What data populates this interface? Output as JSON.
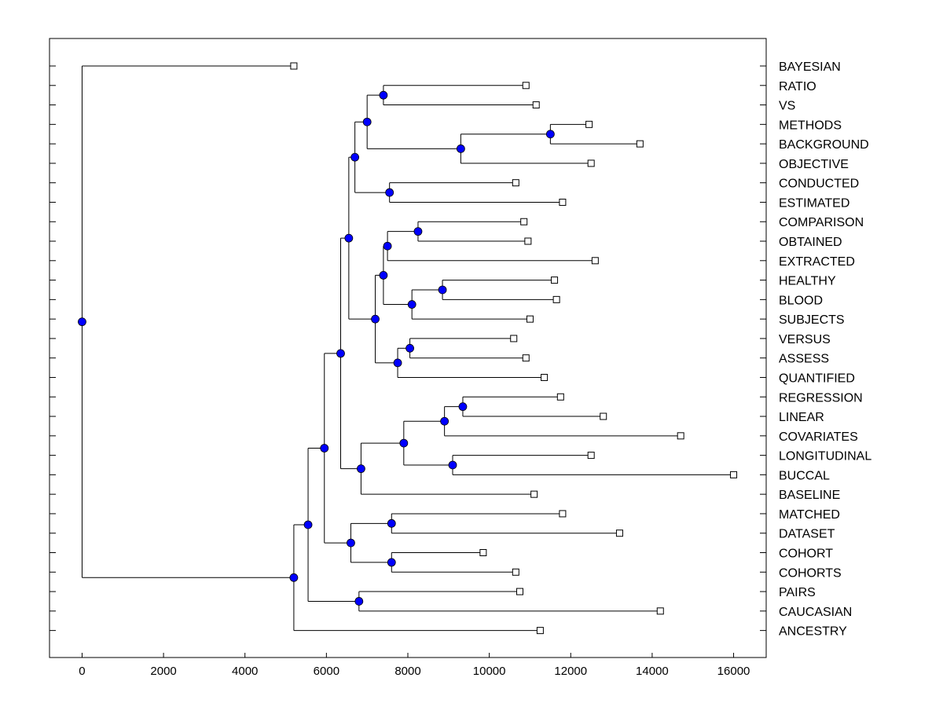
{
  "chart_data": {
    "type": "dendrogram",
    "title": "",
    "xlabel": "",
    "ylabel": "",
    "xlim": [
      -800,
      16800
    ],
    "x_ticks": [
      0,
      2000,
      4000,
      6000,
      8000,
      10000,
      12000,
      14000,
      16000
    ],
    "x_tick_labels": [
      "0",
      "2000",
      "4000",
      "6000",
      "8000",
      "10000",
      "12000",
      "14000",
      "16000"
    ],
    "colors": {
      "node_fill": "#0000ff",
      "leaf_fill": "#ffffff",
      "line": "#000000"
    },
    "leaves": [
      {
        "label": "BAYESIAN",
        "x": 5200
      },
      {
        "label": "RATIO",
        "x": 10900
      },
      {
        "label": "VS",
        "x": 11150
      },
      {
        "label": "METHODS",
        "x": 12450
      },
      {
        "label": "BACKGROUND",
        "x": 13700
      },
      {
        "label": "OBJECTIVE",
        "x": 12500
      },
      {
        "label": "CONDUCTED",
        "x": 10650
      },
      {
        "label": "ESTIMATED",
        "x": 11800
      },
      {
        "label": "COMPARISON",
        "x": 10850
      },
      {
        "label": "OBTAINED",
        "x": 10950
      },
      {
        "label": "EXTRACTED",
        "x": 12600
      },
      {
        "label": "HEALTHY",
        "x": 11600
      },
      {
        "label": "BLOOD",
        "x": 11650
      },
      {
        "label": "SUBJECTS",
        "x": 11000
      },
      {
        "label": "VERSUS",
        "x": 10600
      },
      {
        "label": "ASSESS",
        "x": 10900
      },
      {
        "label": "QUANTIFIED",
        "x": 11350
      },
      {
        "label": "REGRESSION",
        "x": 11750
      },
      {
        "label": "LINEAR",
        "x": 12800
      },
      {
        "label": "COVARIATES",
        "x": 14700
      },
      {
        "label": "LONGITUDINAL",
        "x": 12500
      },
      {
        "label": "BUCCAL",
        "x": 16000
      },
      {
        "label": "BASELINE",
        "x": 11100
      },
      {
        "label": "MATCHED",
        "x": 11800
      },
      {
        "label": "DATASET",
        "x": 13200
      },
      {
        "label": "COHORT",
        "x": 9850
      },
      {
        "label": "COHORTS",
        "x": 10650
      },
      {
        "label": "PAIRS",
        "x": 10750
      },
      {
        "label": "CAUCASIAN",
        "x": 14200
      },
      {
        "label": "ANCESTRY",
        "x": 11250
      }
    ],
    "nodes": [
      {
        "id": "n0",
        "x": 7400,
        "children": [
          "L1",
          "L2"
        ]
      },
      {
        "id": "n1",
        "x": 11500,
        "children": [
          "L3",
          "L4"
        ]
      },
      {
        "id": "n2",
        "x": 9300,
        "children": [
          "n1",
          "L5"
        ]
      },
      {
        "id": "n3",
        "x": 7000,
        "children": [
          "n0",
          "n2"
        ]
      },
      {
        "id": "n4",
        "x": 7550,
        "children": [
          "L6",
          "L7"
        ]
      },
      {
        "id": "n5",
        "x": 6700,
        "children": [
          "n3",
          "n4"
        ]
      },
      {
        "id": "n6",
        "x": 8250,
        "children": [
          "L8",
          "L9"
        ]
      },
      {
        "id": "n7",
        "x": 7500,
        "children": [
          "n6",
          "L10"
        ]
      },
      {
        "id": "n8",
        "x": 8850,
        "children": [
          "L11",
          "L12"
        ]
      },
      {
        "id": "n9",
        "x": 8100,
        "children": [
          "n8",
          "L13"
        ]
      },
      {
        "id": "n10",
        "x": 7400,
        "children": [
          "n7",
          "n9"
        ]
      },
      {
        "id": "n11",
        "x": 8050,
        "children": [
          "L14",
          "L15"
        ]
      },
      {
        "id": "n12",
        "x": 7750,
        "children": [
          "n11",
          "L16"
        ]
      },
      {
        "id": "n13",
        "x": 7200,
        "children": [
          "n10",
          "n12"
        ]
      },
      {
        "id": "n14",
        "x": 6550,
        "children": [
          "n5",
          "n13"
        ]
      },
      {
        "id": "n15",
        "x": 9350,
        "children": [
          "L17",
          "L18"
        ]
      },
      {
        "id": "n16",
        "x": 8900,
        "children": [
          "n15",
          "L19"
        ]
      },
      {
        "id": "n17",
        "x": 9100,
        "children": [
          "L20",
          "L21"
        ]
      },
      {
        "id": "n18",
        "x": 7900,
        "children": [
          "n16",
          "n17"
        ]
      },
      {
        "id": "n19",
        "x": 6850,
        "children": [
          "n18",
          "L22"
        ]
      },
      {
        "id": "n20",
        "x": 6350,
        "children": [
          "n14",
          "n19"
        ]
      },
      {
        "id": "n21",
        "x": 7600,
        "children": [
          "L23",
          "L24"
        ]
      },
      {
        "id": "n22",
        "x": 7600,
        "children": [
          "L25",
          "L26"
        ]
      },
      {
        "id": "n23",
        "x": 6600,
        "children": [
          "n21",
          "n22"
        ]
      },
      {
        "id": "n24",
        "x": 5950,
        "children": [
          "n20",
          "n23"
        ]
      },
      {
        "id": "n25",
        "x": 6800,
        "children": [
          "L27",
          "L28"
        ]
      },
      {
        "id": "n26",
        "x": 5550,
        "children": [
          "n24",
          "n25"
        ]
      },
      {
        "id": "n27",
        "x": 5200,
        "children": [
          "n26",
          "L29"
        ]
      },
      {
        "id": "n28",
        "x": 0,
        "children": [
          "L0",
          "n27"
        ]
      }
    ]
  }
}
